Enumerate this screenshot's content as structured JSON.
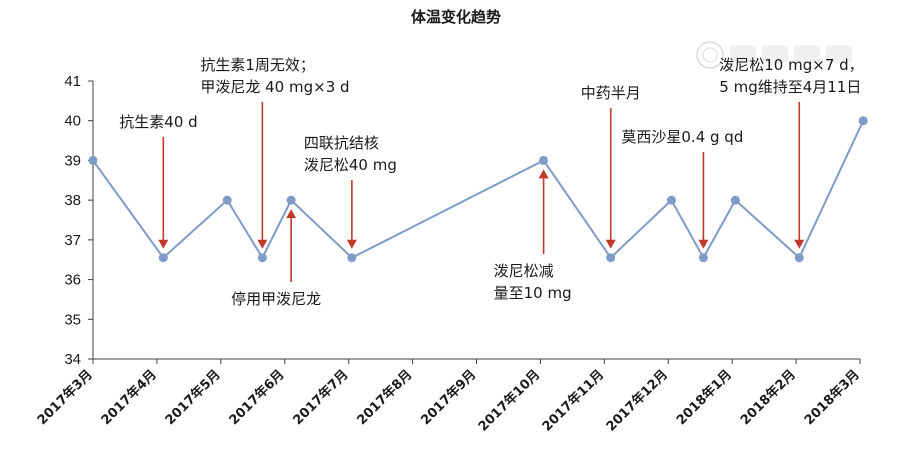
{
  "chart_data": {
    "type": "line",
    "title": "体温变化趋势",
    "xlabel": "",
    "ylabel": "",
    "ylim": [
      34,
      41
    ],
    "yticks": [
      "34",
      "35",
      "36",
      "37",
      "38",
      "39",
      "40",
      "41"
    ],
    "categories": [
      "2017年3月",
      "2017年4月",
      "2017年5月",
      "2017年6月",
      "2017年7月",
      "2017年8月",
      "2017年9月",
      "2017年10月",
      "2017年11月",
      "2017年12月",
      "2018年1月",
      "2018年2月",
      "2018年3月"
    ],
    "series": [
      {
        "points": [
          {
            "x": 0.0,
            "y": 39
          },
          {
            "x": 1.1,
            "y": 36.55
          },
          {
            "x": 2.1,
            "y": 38
          },
          {
            "x": 2.65,
            "y": 36.55
          },
          {
            "x": 3.1,
            "y": 38
          },
          {
            "x": 4.05,
            "y": 36.55
          },
          {
            "x": 7.05,
            "y": 39
          },
          {
            "x": 8.1,
            "y": 36.55
          },
          {
            "x": 9.05,
            "y": 38
          },
          {
            "x": 9.55,
            "y": 36.55
          },
          {
            "x": 10.05,
            "y": 38
          },
          {
            "x": 11.05,
            "y": 36.55
          },
          {
            "x": 12.05,
            "y": 40
          }
        ]
      }
    ],
    "series_color": "#7f9bc7",
    "arrow_color": "#c0392b",
    "grid": false,
    "annotations": [
      {
        "lines": [
          "抗生素40 d"
        ],
        "x": 1.1,
        "y": 36.55,
        "direction": "down"
      },
      {
        "lines": [
          "抗生素1周无效；",
          "甲泼尼龙 40 mg×3 d"
        ],
        "x": 2.65,
        "y": 36.55,
        "direction": "down"
      },
      {
        "lines": [
          "停用甲泼尼龙"
        ],
        "x": 3.1,
        "y": 38,
        "direction": "up"
      },
      {
        "lines": [
          "四联抗结核",
          "泼尼松40 mg"
        ],
        "x": 4.05,
        "y": 36.55,
        "direction": "down"
      },
      {
        "lines": [
          "泼尼松减",
          "量至10 mg"
        ],
        "x": 7.05,
        "y": 39,
        "direction": "up"
      },
      {
        "lines": [
          "中药半月"
        ],
        "x": 8.1,
        "y": 36.55,
        "direction": "down"
      },
      {
        "lines": [
          "莫西沙星0.4 g qd"
        ],
        "x": 9.55,
        "y": 36.55,
        "direction": "down"
      },
      {
        "lines": [
          "泼尼松10 mg×7 d，",
          "5 mg维持至4月11日"
        ],
        "x": 11.05,
        "y": 36.55,
        "direction": "down"
      }
    ],
    "watermark": "seal"
  }
}
